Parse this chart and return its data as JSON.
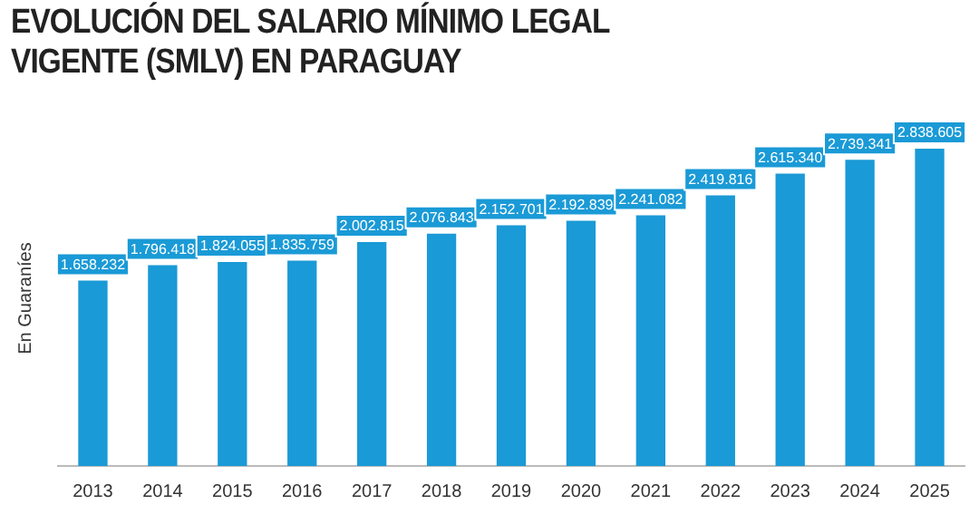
{
  "chart_data": {
    "type": "bar",
    "title": "EVOLUCIÓN DEL SALARIO MÍNIMO LEGAL VIGENTE (SMLV) EN PARAGUAY",
    "ylabel": "En Guaraníes",
    "categories": [
      "2013",
      "2014",
      "2015",
      "2016",
      "2017",
      "2018",
      "2019",
      "2020",
      "2021",
      "2022",
      "2023",
      "2024",
      "2025"
    ],
    "values": [
      1658232,
      1796418,
      1824055,
      1835759,
      2002815,
      2076843,
      2152701,
      2192839,
      2241082,
      2419816,
      2615340,
      2739341,
      2838605
    ],
    "value_labels": [
      "1.658.232",
      "1.796.418",
      "1.824.055",
      "1.835.759",
      "2.002.815",
      "2.076.843",
      "2.152.701",
      "2.192.839",
      "2.241.082",
      "2.419.816",
      "2.615.340",
      "2.739.341",
      "2.838.605"
    ],
    "color": "#1a9ad6",
    "tick_labels": "x",
    "grid": false,
    "legend": false
  }
}
